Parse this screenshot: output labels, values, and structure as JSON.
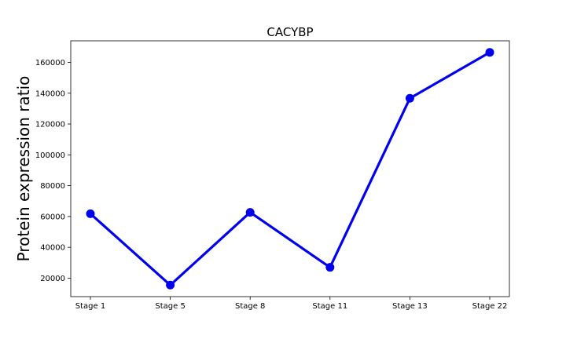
{
  "chart_data": {
    "type": "line",
    "title": "CACYBP",
    "xlabel": "",
    "ylabel": "Protein expression ratio",
    "categories": [
      "Stage 1",
      "Stage 5",
      "Stage 8",
      "Stage 11",
      "Stage 13",
      "Stage 22"
    ],
    "series": [
      {
        "values": [
          61800,
          15500,
          62700,
          27000,
          136700,
          166500
        ],
        "color": "#0000ee"
      }
    ],
    "yticks": [
      20000,
      40000,
      60000,
      80000,
      100000,
      120000,
      140000,
      160000
    ],
    "ylim": [
      8000,
      174000
    ],
    "grid": false,
    "legend": "none"
  }
}
